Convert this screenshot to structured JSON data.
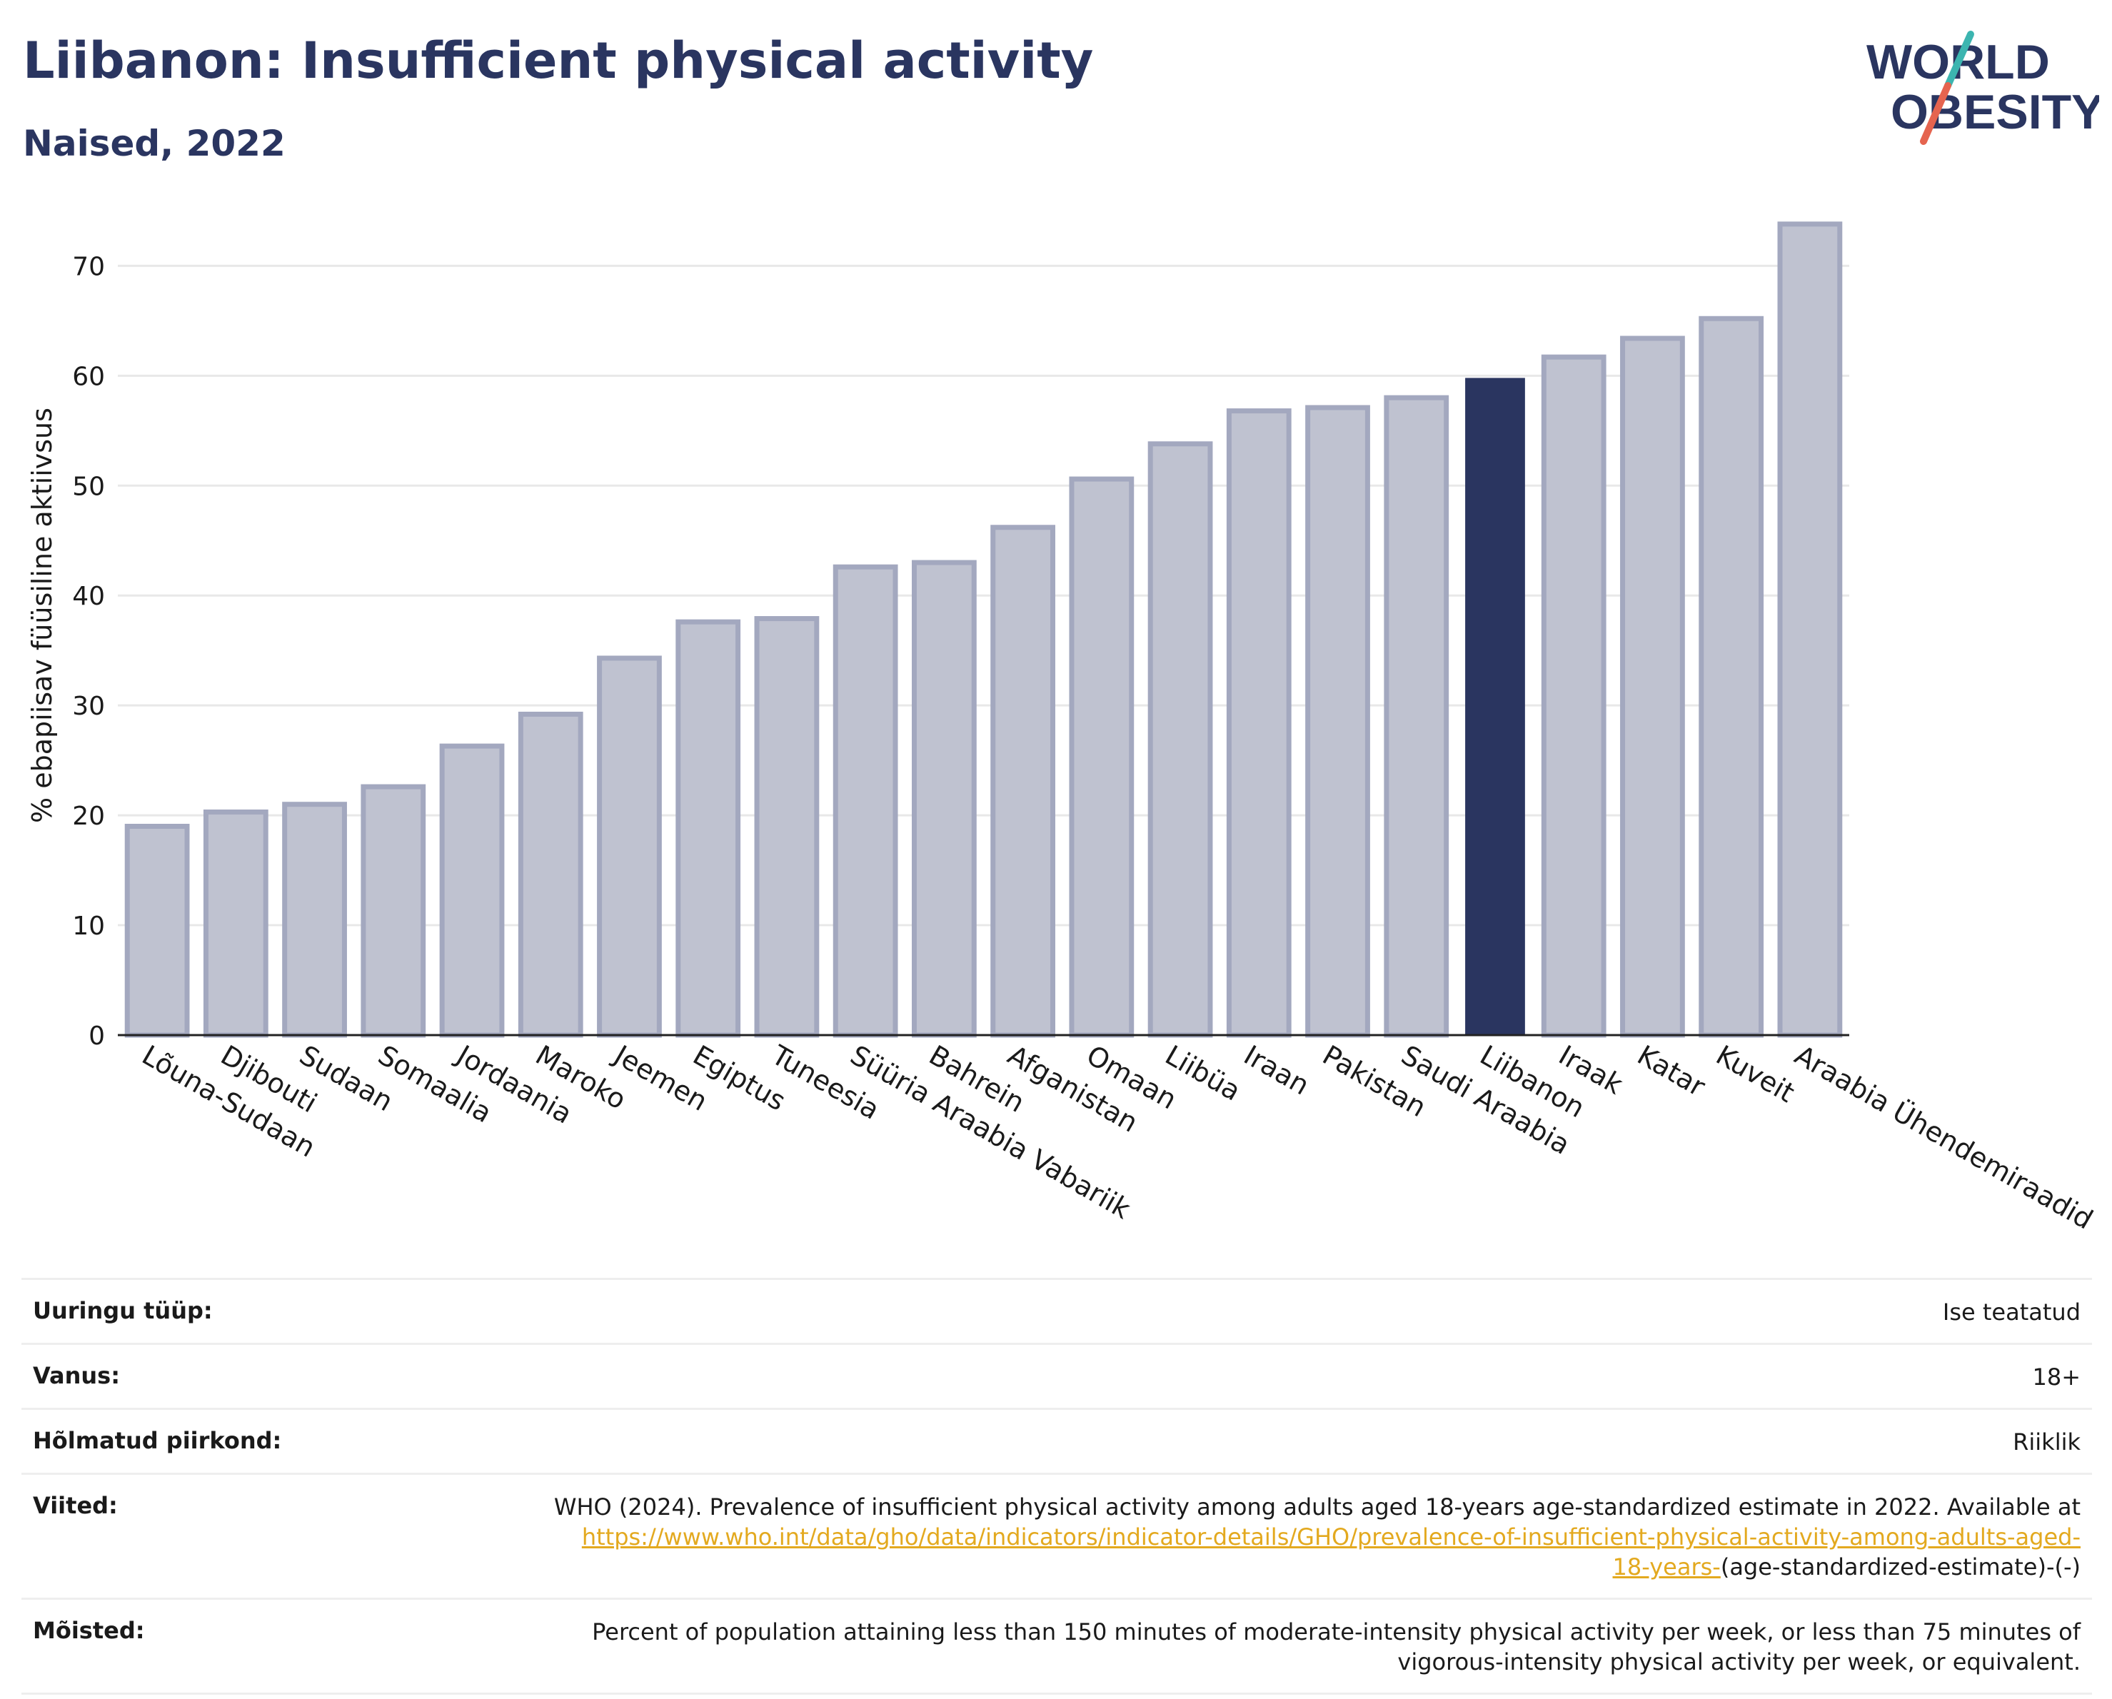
{
  "header": {
    "title": "Liibanon: Insufficient physical activity",
    "subtitle": "Naised, 2022"
  },
  "logo": {
    "line1": "WORLD",
    "line2": "OBESITY",
    "colors": {
      "text": "#2a3560",
      "slash_top": "#3cb5b0",
      "slash_bottom": "#e5644f"
    }
  },
  "colors": {
    "bar_default": "#bfc2d0",
    "bar_default_border": "#a3a8bf",
    "bar_highlight": "#2a3560",
    "grid": "#e8e8e8",
    "axis": "#222222"
  },
  "chart_data": {
    "type": "bar",
    "ylabel": "% ebapiisav füüsiline aktiivsus",
    "xlabel": "",
    "ylim": [
      0,
      76
    ],
    "yticks": [
      0,
      10,
      20,
      30,
      40,
      50,
      60,
      70
    ],
    "grid": true,
    "highlight": "Liibanon",
    "categories": [
      "Lõuna-Sudaan",
      "Djibouti",
      "Sudaan",
      "Somaalia",
      "Jordaania",
      "Maroko",
      "Jeemen",
      "Egiptus",
      "Tuneesia",
      "Süüria Araabia Vabariik",
      "Bahrein",
      "Afganistan",
      "Omaan",
      "Liibüa",
      "Iraan",
      "Pakistan",
      "Saudi Araabia",
      "Liibanon",
      "Iraak",
      "Katar",
      "Kuveit",
      "Araabia Ühendemiraadid"
    ],
    "values": [
      19.0,
      20.3,
      21.0,
      22.6,
      26.3,
      29.2,
      34.3,
      37.6,
      37.9,
      42.6,
      43.0,
      46.2,
      50.6,
      53.8,
      56.8,
      57.1,
      58.0,
      59.8,
      61.7,
      63.4,
      65.2,
      73.8
    ]
  },
  "meta": {
    "survey_type": {
      "label": "Uuringu tüüp:",
      "value": "Ise teatatud"
    },
    "age": {
      "label": "Vanus:",
      "value": "18+"
    },
    "region": {
      "label": "Hõlmatud piirkond:",
      "value": "Riiklik"
    },
    "references": {
      "label": "Viited:",
      "text": "WHO (2024). Prevalence of insufficient physical activity among adults aged 18-years age-standardized estimate in 2022. Available at",
      "link": "https://www.who.int/data/gho/data/indicators/indicator-details/GHO/prevalence-of-insufficient-physical-activity-among-adults-aged-18-years-",
      "suffix": "(age-standardized-estimate)-(-)"
    },
    "definitions": {
      "label": "Mõisted:",
      "value": "Percent of population attaining less than 150 minutes of moderate-intensity physical activity per week, or less than 75 minutes of vigorous-intensity physical activity per week, or equivalent."
    }
  }
}
